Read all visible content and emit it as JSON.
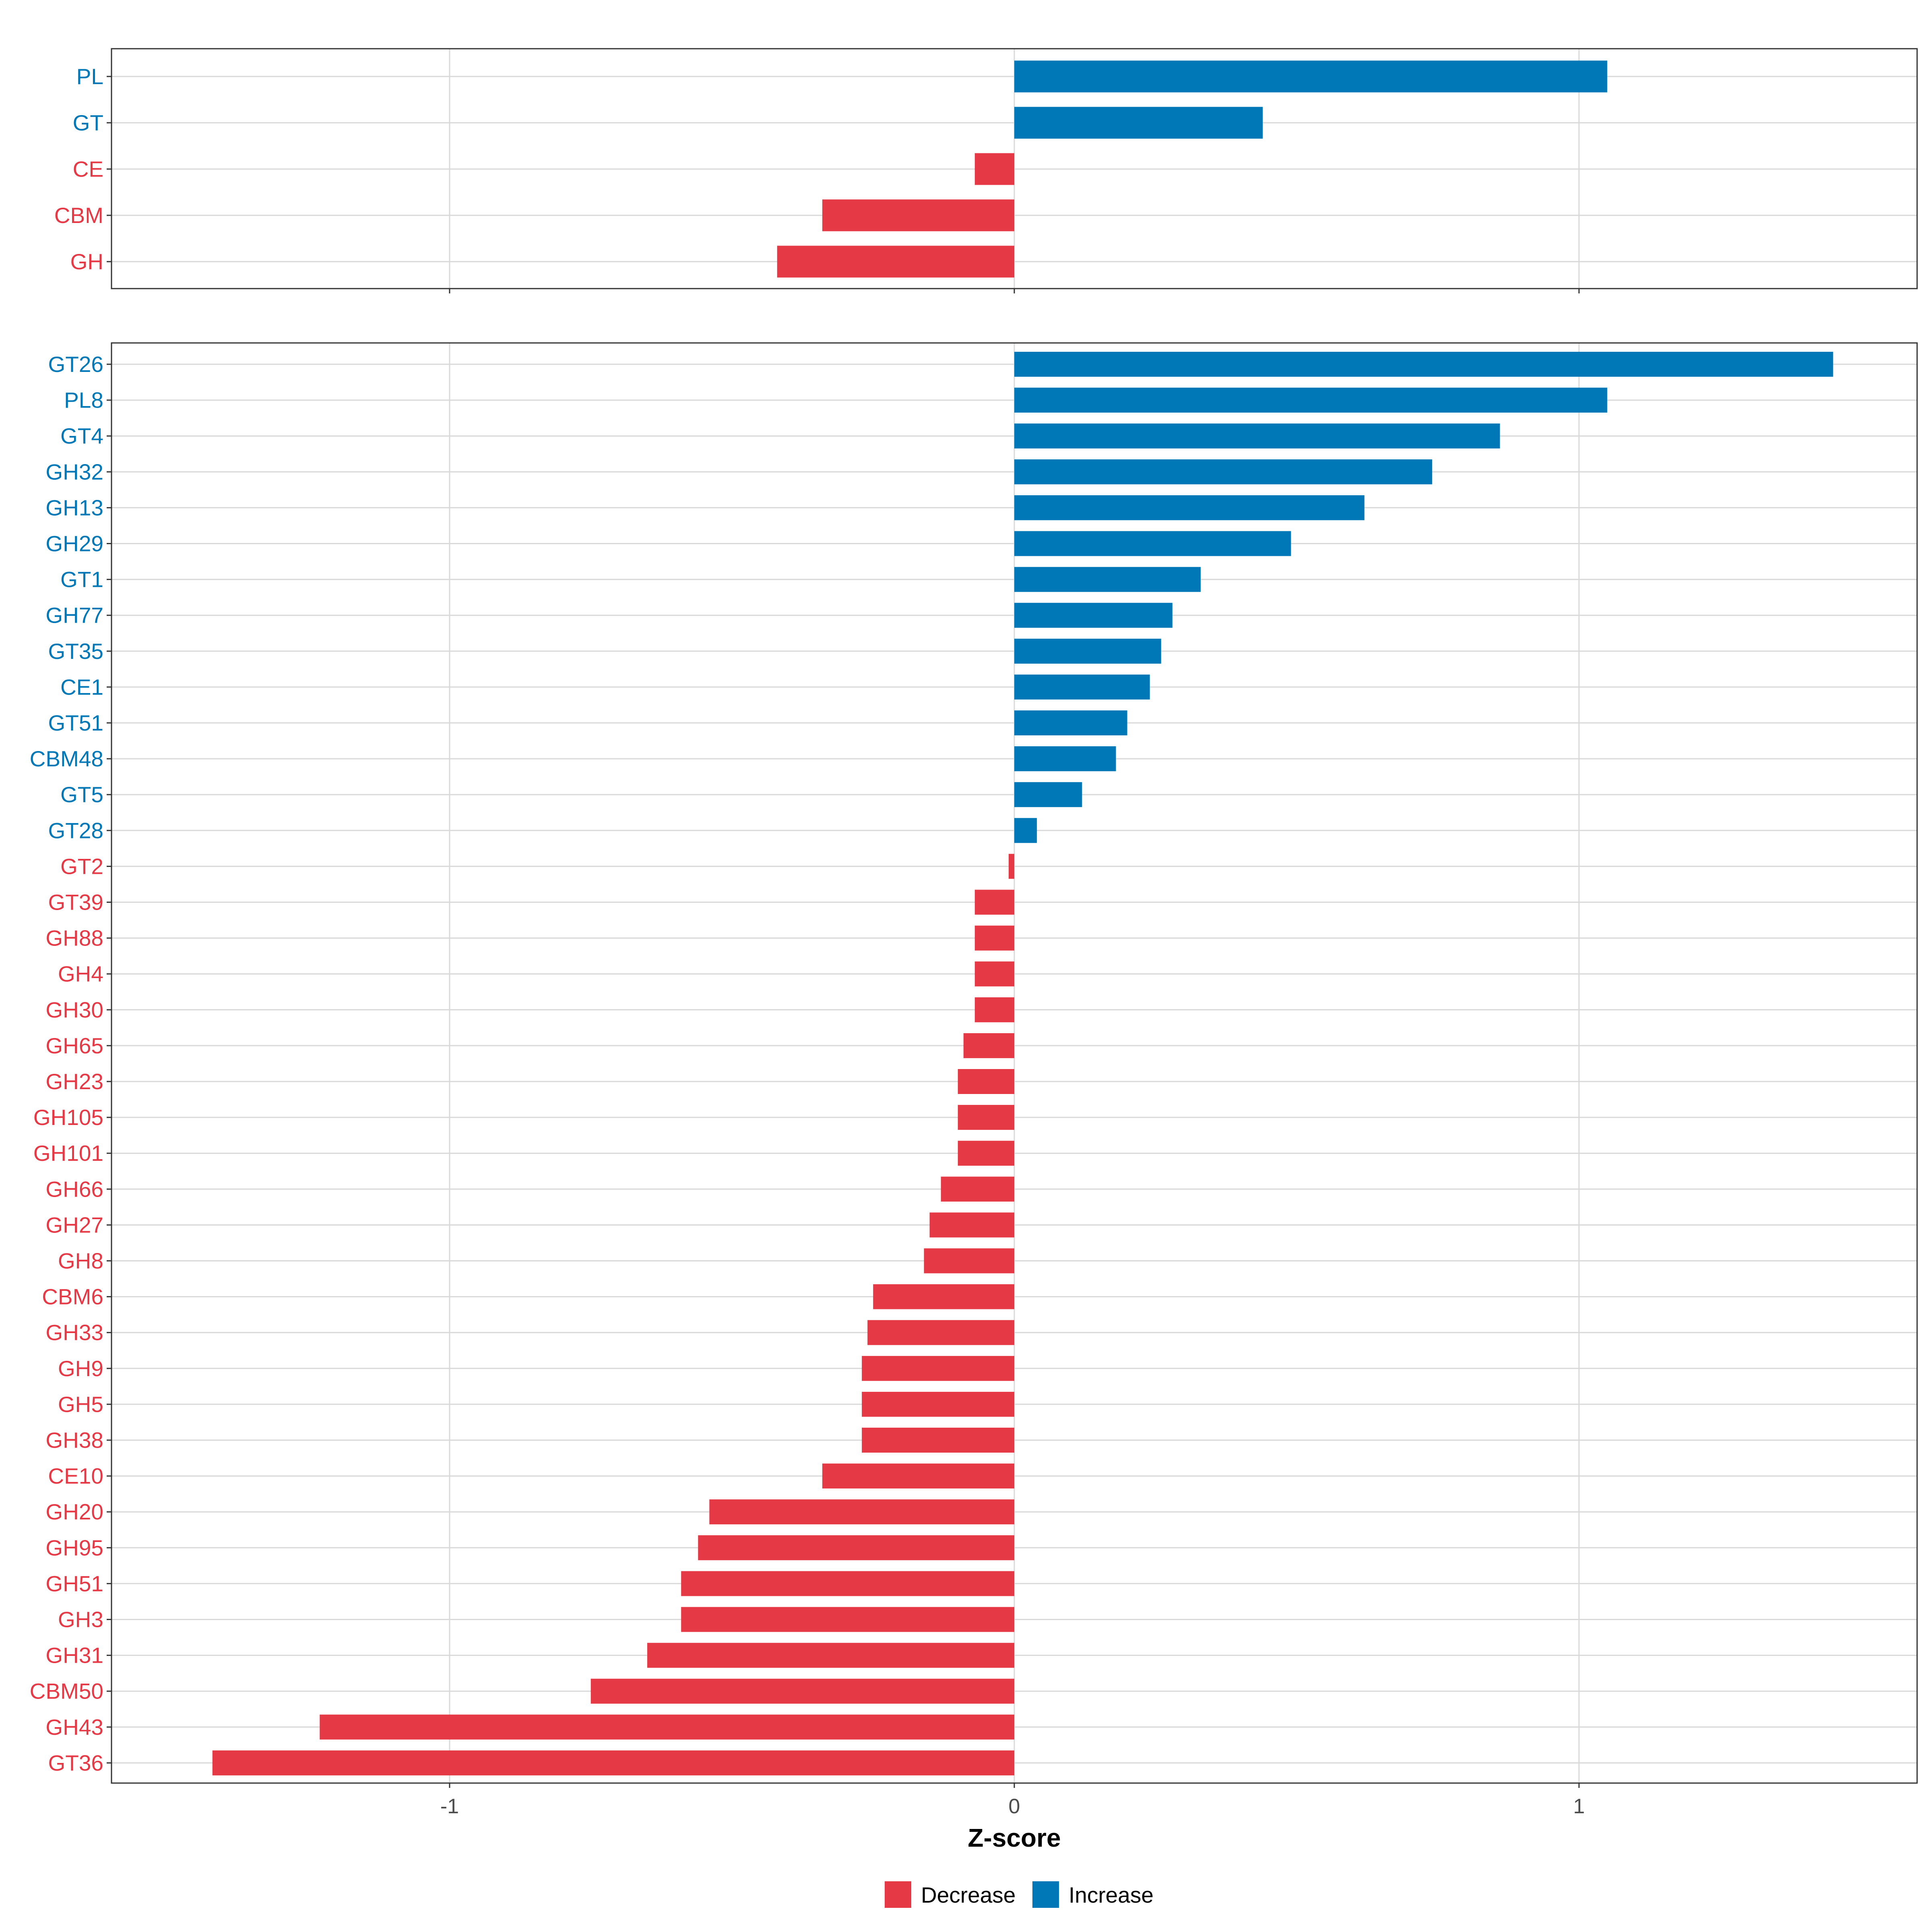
{
  "chart_data": {
    "type": "bar",
    "orientation": "horizontal",
    "xlabel": "Z-score",
    "xlim": [
      -1.6,
      1.6
    ],
    "x_ticks": [
      -1,
      0,
      1
    ],
    "x_tick_labels": [
      "-1",
      "0",
      "1"
    ],
    "grid": true,
    "legend": {
      "placement": "bottom",
      "items": [
        {
          "label": "Decrease",
          "color": "#E63946"
        },
        {
          "label": "Increase",
          "color": "#0077B6"
        }
      ]
    },
    "panels": [
      {
        "name": "category",
        "categories": [
          "PL",
          "GT",
          "CE",
          "CBM",
          "GH"
        ],
        "values": [
          1.05,
          0.44,
          -0.07,
          -0.34,
          -0.42
        ]
      },
      {
        "name": "family",
        "categories": [
          "GT26",
          "PL8",
          "GT4",
          "GH32",
          "GH13",
          "GH29",
          "GT1",
          "GH77",
          "GT35",
          "CE1",
          "GT51",
          "CBM48",
          "GT5",
          "GT28",
          "GT2",
          "GT39",
          "GH88",
          "GH4",
          "GH30",
          "GH65",
          "GH23",
          "GH105",
          "GH101",
          "GH66",
          "GH27",
          "GH8",
          "CBM6",
          "GH33",
          "GH9",
          "GH5",
          "GH38",
          "CE10",
          "GH20",
          "GH95",
          "GH51",
          "GH3",
          "GH31",
          "CBM50",
          "GH43",
          "GT36"
        ],
        "values": [
          1.45,
          1.05,
          0.86,
          0.74,
          0.62,
          0.49,
          0.33,
          0.28,
          0.26,
          0.24,
          0.2,
          0.18,
          0.12,
          0.04,
          -0.01,
          -0.07,
          -0.07,
          -0.07,
          -0.07,
          -0.09,
          -0.1,
          -0.1,
          -0.1,
          -0.13,
          -0.15,
          -0.16,
          -0.25,
          -0.26,
          -0.27,
          -0.27,
          -0.27,
          -0.34,
          -0.54,
          -0.56,
          -0.59,
          -0.59,
          -0.65,
          -0.75,
          -1.23,
          -1.42
        ]
      }
    ]
  }
}
